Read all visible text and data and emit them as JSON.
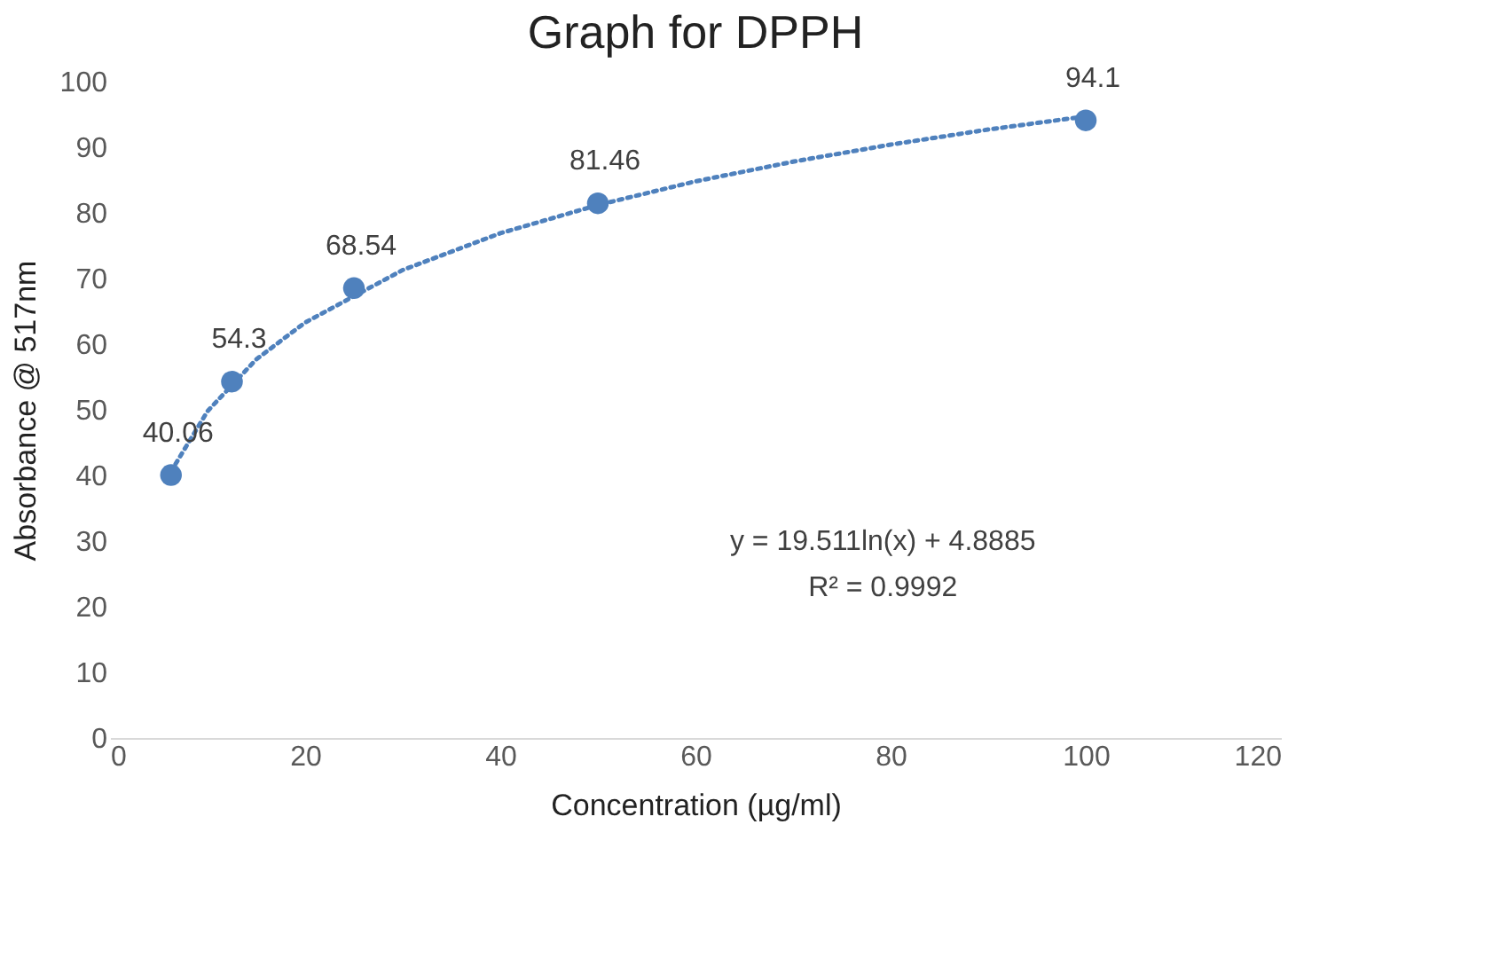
{
  "chart_data": {
    "type": "scatter",
    "title": "Graph for DPPH",
    "xlabel": "Concentration (µg/ml)",
    "ylabel": "Absorbance @  517nm",
    "xlim": [
      0,
      120
    ],
    "xticks": [
      0,
      20,
      40,
      60,
      80,
      100,
      120
    ],
    "ylim": [
      0,
      100
    ],
    "yticks": [
      0,
      10,
      20,
      30,
      40,
      50,
      60,
      70,
      80,
      90,
      100
    ],
    "series": [
      {
        "color": "#4f81bd",
        "marker": "circle",
        "data_labels": true,
        "x": [
          6.25,
          12.5,
          25,
          50,
          100
        ],
        "values": [
          40.06,
          54.3,
          68.54,
          81.46,
          94.1
        ]
      },
      {
        "type": "line",
        "color": "#4f81bd",
        "line_style": "dotted",
        "marker": "none",
        "x": [
          6.25,
          10,
          15,
          20,
          30,
          40,
          50,
          60,
          70,
          80,
          90,
          100
        ],
        "values": [
          40.6,
          49.8,
          57.7,
          63.3,
          71.3,
          76.9,
          81.2,
          84.8,
          87.8,
          90.4,
          92.7,
          94.7
        ]
      }
    ],
    "annotations": [
      "y = 19.511ln(x) + 4.8885",
      "R² = 0.9992"
    ]
  }
}
